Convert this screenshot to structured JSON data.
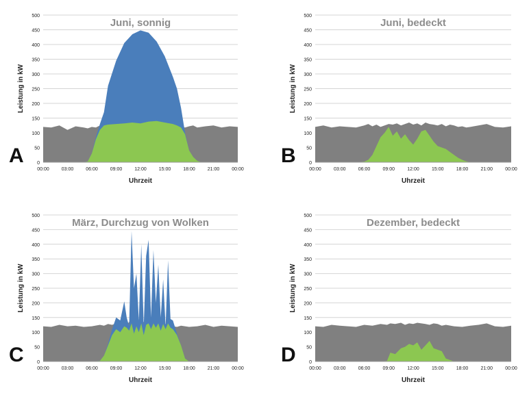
{
  "chart_data": [
    {
      "type": "area",
      "panel_letter": "A",
      "title": "Juni, sonnig",
      "xlabel": "Uhrzeit",
      "ylabel": "Leistung in kW",
      "ylim": [
        0,
        500
      ],
      "yticks": [
        "0",
        "50",
        "100",
        "150",
        "200",
        "250",
        "300",
        "350",
        "400",
        "450",
        "500"
      ],
      "xticks": [
        "00:00",
        "03:00",
        "06:00",
        "09:00",
        "12:00",
        "15:00",
        "18:00",
        "21:00",
        "00:00"
      ],
      "grid": true,
      "x_hours": [
        0,
        1,
        2,
        3,
        4,
        5,
        5.5,
        6,
        6.5,
        7,
        7.5,
        8,
        9,
        10,
        11,
        12,
        13,
        14,
        15,
        16,
        16.5,
        17,
        17.5,
        18,
        18.5,
        19,
        19.5,
        20,
        21,
        22,
        23,
        24
      ],
      "series": [
        {
          "color": "#808080",
          "values": [
            120,
            118,
            125,
            110,
            122,
            118,
            115,
            120,
            118,
            125,
            120,
            118,
            120,
            122,
            118,
            120,
            122,
            118,
            120,
            122,
            125,
            120,
            118,
            122,
            125,
            118,
            120,
            122,
            125,
            118,
            122,
            120
          ]
        },
        {
          "color": "#4a7ebb",
          "values": [
            0,
            0,
            0,
            0,
            0,
            0,
            3,
            30,
            85,
            130,
            170,
            260,
            345,
            405,
            435,
            448,
            440,
            410,
            360,
            290,
            250,
            185,
            100,
            40,
            18,
            5,
            0,
            0,
            0,
            0,
            0,
            0
          ]
        },
        {
          "color": "#8cc751",
          "values": [
            0,
            0,
            0,
            0,
            0,
            0,
            3,
            30,
            78,
            110,
            125,
            128,
            130,
            132,
            135,
            132,
            138,
            140,
            135,
            130,
            125,
            118,
            95,
            40,
            18,
            5,
            0,
            0,
            0,
            0,
            0,
            0
          ]
        }
      ]
    },
    {
      "type": "area",
      "panel_letter": "B",
      "title": "Juni, bedeckt",
      "xlabel": "Uhrzeit",
      "ylabel": "Leistung in kW",
      "ylim": [
        0,
        500
      ],
      "yticks": [
        "0",
        "50",
        "100",
        "150",
        "200",
        "250",
        "300",
        "350",
        "400",
        "450",
        "500"
      ],
      "xticks": [
        "00:00",
        "03:00",
        "06:00",
        "09:00",
        "12:00",
        "15:00",
        "18:00",
        "21:00",
        "00:00"
      ],
      "grid": true,
      "x_hours": [
        0,
        1,
        2,
        3,
        4,
        5,
        6,
        6.5,
        7,
        7.5,
        8,
        8.5,
        9,
        9.5,
        10,
        10.5,
        11,
        11.5,
        12,
        12.5,
        13,
        13.5,
        14,
        14.5,
        15,
        15.5,
        16,
        16.5,
        17,
        17.5,
        18,
        18.5,
        19,
        20,
        21,
        22,
        23,
        24
      ],
      "series": [
        {
          "color": "#808080",
          "values": [
            120,
            125,
            118,
            122,
            120,
            118,
            125,
            130,
            122,
            128,
            120,
            125,
            130,
            128,
            132,
            125,
            130,
            135,
            128,
            132,
            125,
            135,
            130,
            128,
            125,
            130,
            122,
            128,
            125,
            120,
            122,
            118,
            120,
            125,
            130,
            120,
            118,
            122
          ]
        },
        {
          "color": "#8cc751",
          "values": [
            0,
            0,
            0,
            0,
            0,
            0,
            2,
            8,
            25,
            55,
            85,
            100,
            120,
            90,
            105,
            80,
            95,
            75,
            60,
            80,
            105,
            110,
            90,
            70,
            55,
            50,
            45,
            35,
            25,
            15,
            8,
            3,
            0,
            0,
            0,
            0,
            0,
            0
          ]
        }
      ]
    },
    {
      "type": "area",
      "panel_letter": "C",
      "title": "März, Durchzug von Wolken",
      "xlabel": "Uhrzeit",
      "ylabel": "Leistung in kW",
      "ylim": [
        0,
        500
      ],
      "yticks": [
        "0",
        "50",
        "100",
        "150",
        "200",
        "250",
        "300",
        "350",
        "400",
        "450",
        "500"
      ],
      "xticks": [
        "00:00",
        "03:00",
        "06:00",
        "09:00",
        "12:00",
        "15:00",
        "18:00",
        "21:00",
        "00:00"
      ],
      "grid": true,
      "x_hours": [
        0,
        1,
        2,
        3,
        4,
        5,
        6,
        7,
        7.5,
        8,
        8.5,
        9,
        9.5,
        10,
        10.3,
        10.6,
        10.9,
        11.2,
        11.5,
        11.8,
        12.1,
        12.4,
        12.7,
        13,
        13.3,
        13.6,
        13.9,
        14.2,
        14.5,
        14.8,
        15.1,
        15.4,
        15.7,
        16,
        16.5,
        17,
        17.5,
        18,
        19,
        20,
        21,
        22,
        23,
        24
      ],
      "series": [
        {
          "color": "#808080",
          "values": [
            120,
            118,
            125,
            120,
            122,
            118,
            120,
            125,
            122,
            128,
            125,
            130,
            128,
            132,
            125,
            135,
            130,
            128,
            132,
            125,
            130,
            135,
            128,
            132,
            125,
            130,
            128,
            132,
            125,
            130,
            128,
            125,
            122,
            120,
            118,
            122,
            120,
            118,
            120,
            125,
            118,
            122,
            120,
            118
          ]
        },
        {
          "color": "#4a7ebb",
          "values": [
            0,
            0,
            0,
            0,
            0,
            0,
            0,
            2,
            20,
            60,
            110,
            150,
            140,
            205,
            150,
            120,
            445,
            250,
            300,
            140,
            400,
            120,
            360,
            415,
            150,
            380,
            200,
            330,
            150,
            280,
            120,
            345,
            145,
            140,
            95,
            55,
            10,
            0,
            0,
            0,
            0,
            0,
            0,
            0
          ]
        },
        {
          "color": "#8cc751",
          "values": [
            0,
            0,
            0,
            0,
            0,
            0,
            0,
            2,
            20,
            55,
            90,
            110,
            100,
            120,
            115,
            105,
            130,
            95,
            120,
            100,
            130,
            90,
            125,
            130,
            110,
            130,
            115,
            130,
            105,
            128,
            110,
            130,
            115,
            110,
            90,
            55,
            10,
            0,
            0,
            0,
            0,
            0,
            0,
            0
          ]
        }
      ]
    },
    {
      "type": "area",
      "panel_letter": "D",
      "title": "Dezember, bedeckt",
      "xlabel": "Uhrzeit",
      "ylabel": "Leistung in kW",
      "ylim": [
        0,
        500
      ],
      "yticks": [
        "0",
        "50",
        "100",
        "150",
        "200",
        "250",
        "300",
        "350",
        "400",
        "450",
        "500"
      ],
      "xticks": [
        "00:00",
        "03:00",
        "06:00",
        "09:00",
        "12:00",
        "15:00",
        "18:00",
        "21:00",
        "00:00"
      ],
      "grid": true,
      "x_hours": [
        0,
        1,
        2,
        3,
        4,
        5,
        6,
        7,
        8,
        8.8,
        9.2,
        9.8,
        10.5,
        11,
        11.5,
        12,
        12.5,
        13,
        13.5,
        14,
        14.5,
        15,
        15.5,
        16,
        17,
        18,
        19,
        20,
        21,
        22,
        23,
        24
      ],
      "series": [
        {
          "color": "#808080",
          "values": [
            120,
            118,
            125,
            122,
            120,
            118,
            125,
            122,
            128,
            125,
            130,
            128,
            132,
            125,
            130,
            128,
            132,
            130,
            128,
            125,
            130,
            128,
            122,
            125,
            120,
            118,
            122,
            125,
            130,
            120,
            118,
            122
          ]
        },
        {
          "color": "#8cc751",
          "values": [
            0,
            0,
            0,
            0,
            0,
            0,
            0,
            0,
            0,
            2,
            30,
            25,
            45,
            50,
            60,
            55,
            65,
            40,
            55,
            70,
            45,
            40,
            35,
            10,
            0,
            0,
            0,
            0,
            0,
            0,
            0,
            0
          ]
        }
      ]
    }
  ]
}
